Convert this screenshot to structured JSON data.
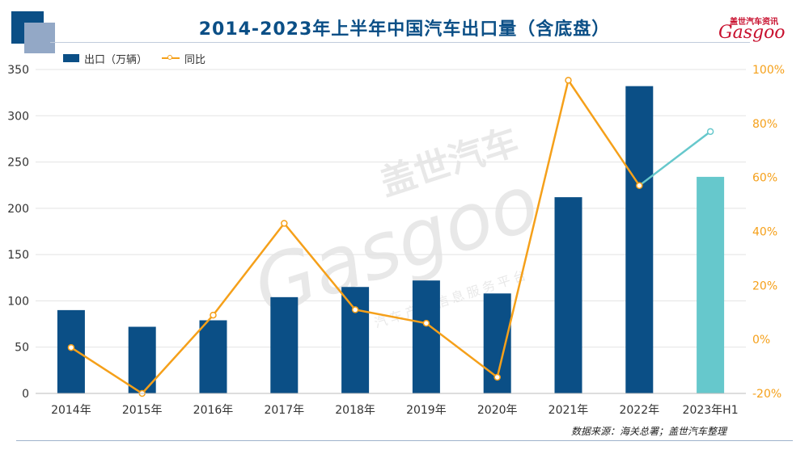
{
  "title": "2014-2023年上半年中国汽车出口量（含底盘）",
  "source": "数据来源：海关总署；盖世汽车整理",
  "logo": {
    "cn": "盖世汽车资讯",
    "en": "Gasgoo"
  },
  "watermark": {
    "cn": "盖世汽车",
    "en": "Gasgoo",
    "sub": "汽车产业信息服务平台"
  },
  "colors": {
    "bar": "#0b4f86",
    "bar_highlight": "#66c8cc",
    "line": "#f5a01a",
    "line_highlight": "#66c8cc",
    "title": "#0b4f86"
  },
  "chart_data": {
    "type": "bar",
    "title": "2014-2023年上半年中国汽车出口量（含底盘）",
    "categories": [
      "2014年",
      "2015年",
      "2016年",
      "2017年",
      "2018年",
      "2019年",
      "2020年",
      "2021年",
      "2022年",
      "2023年H1"
    ],
    "series": [
      {
        "name": "出口（万辆）",
        "type": "bar",
        "axis": "left",
        "values": [
          90,
          72,
          79,
          104,
          115,
          122,
          108,
          212,
          332,
          234
        ]
      },
      {
        "name": "同比",
        "type": "line",
        "axis": "right",
        "values": [
          -3,
          -20,
          9,
          43,
          11,
          6,
          -14,
          96,
          57,
          77
        ]
      }
    ],
    "y_left": {
      "ylim": [
        0,
        350
      ],
      "ticks": [
        0,
        50,
        100,
        150,
        200,
        250,
        300,
        350
      ],
      "tick_labels": [
        "0",
        "50",
        "100",
        "150",
        "200",
        "250",
        "300",
        "350"
      ]
    },
    "y_right": {
      "ylim": [
        -20,
        100
      ],
      "ticks": [
        -20,
        0,
        20,
        40,
        60,
        80,
        100
      ],
      "tick_labels": [
        "-20%",
        "0%",
        "20%",
        "40%",
        "60%",
        "80%",
        "100%"
      ]
    },
    "highlight_index": 9,
    "grid": true,
    "legend_position": "top-left"
  }
}
